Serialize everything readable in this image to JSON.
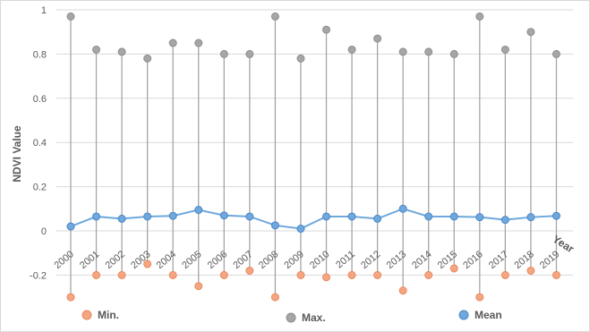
{
  "chart_data": {
    "type": "line",
    "title": "",
    "xlabel": "Year",
    "ylabel": "NDVI Value",
    "ylim": [
      -0.3,
      1.0
    ],
    "yticks": [
      "-0.2",
      "0",
      "0.2",
      "0.4",
      "0.6",
      "0.8",
      "1"
    ],
    "grid": true,
    "legend_placement": "bottom",
    "categories": [
      "2000",
      "2001",
      "2002",
      "2003",
      "2004",
      "2005",
      "2006",
      "2007",
      "2008",
      "2009",
      "2010",
      "2011",
      "2012",
      "2013",
      "2014",
      "2015",
      "2016",
      "2017",
      "2018",
      "2019"
    ],
    "series": [
      {
        "name": "Min.",
        "color": "#f4a582",
        "values": [
          -0.3,
          -0.2,
          -0.2,
          -0.15,
          -0.2,
          -0.25,
          -0.2,
          -0.18,
          -0.3,
          -0.2,
          -0.21,
          -0.2,
          -0.2,
          -0.27,
          -0.2,
          -0.17,
          -0.3,
          -0.2,
          -0.18,
          -0.2
        ]
      },
      {
        "name": "Max.",
        "color": "#a6a6a6",
        "values": [
          0.97,
          0.82,
          0.81,
          0.78,
          0.85,
          0.85,
          0.8,
          0.8,
          0.97,
          0.78,
          0.91,
          0.82,
          0.87,
          0.81,
          0.81,
          0.8,
          0.97,
          0.82,
          0.9,
          0.8
        ]
      },
      {
        "name": "Mean",
        "color": "#6fa8dc",
        "values": [
          0.02,
          0.065,
          0.055,
          0.065,
          0.068,
          0.095,
          0.07,
          0.065,
          0.025,
          0.01,
          0.065,
          0.065,
          0.055,
          0.1,
          0.065,
          0.065,
          0.062,
          0.05,
          0.062,
          0.068
        ]
      }
    ]
  }
}
